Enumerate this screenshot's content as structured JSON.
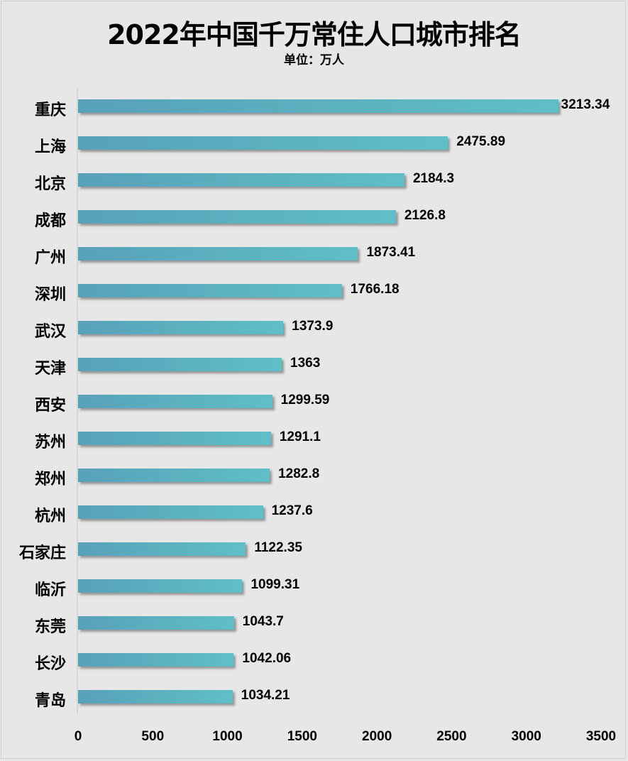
{
  "chart_data": {
    "type": "bar",
    "orientation": "horizontal",
    "title": "2022年中国千万常住人口城市排名",
    "subtitle": "单位：万人",
    "xlabel": "",
    "ylabel": "",
    "xlim": [
      0,
      3500
    ],
    "xticks": [
      "0",
      "500",
      "1000",
      "1500",
      "2000",
      "2500",
      "3000",
      "3500"
    ],
    "grid": false,
    "legend": "none",
    "categories": [
      "重庆",
      "上海",
      "北京",
      "成都",
      "广州",
      "深圳",
      "武汉",
      "天津",
      "西安",
      "苏州",
      "郑州",
      "杭州",
      "石家庄",
      "临沂",
      "东莞",
      "长沙",
      "青岛"
    ],
    "values": [
      3213.34,
      2475.89,
      2184.3,
      2126.8,
      1873.41,
      1766.18,
      1373.9,
      1363,
      1299.59,
      1291.1,
      1282.8,
      1237.6,
      1122.35,
      1099.31,
      1043.7,
      1042.06,
      1034.21
    ],
    "value_labels": [
      "3213.34",
      "2475.89",
      "2184.3",
      "2126.8",
      "1873.41",
      "1766.18",
      "1373.9",
      "1363",
      "1299.59",
      "1291.1",
      "1282.8",
      "1237.6",
      "1122.35",
      "1099.31",
      "1043.7",
      "1042.06",
      "1034.21"
    ],
    "colors": {
      "bar_start": "#58a1b9",
      "bar_end": "#5fbfc6",
      "background": "#e7e7e7"
    }
  }
}
